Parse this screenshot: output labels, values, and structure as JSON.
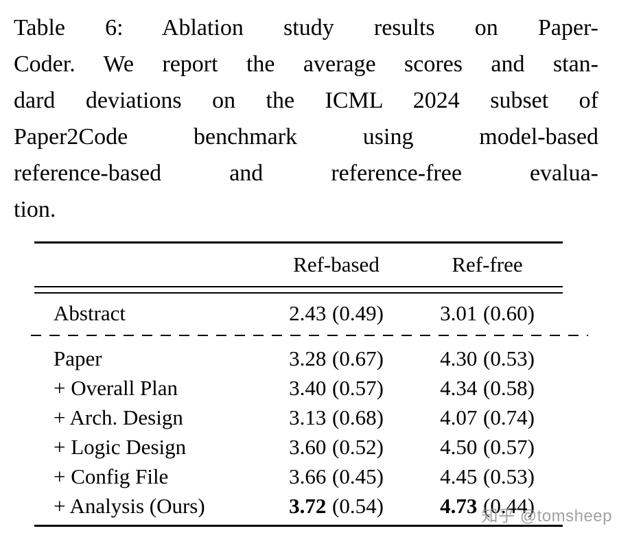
{
  "caption": {
    "lines": [
      "Table 6:  Ablation study results on Paper-",
      "Coder. We report the average scores and stan-",
      "dard deviations on the ICML 2024 subset of",
      "Paper2Code benchmark using model-based",
      "reference-based and reference-free evalua-",
      "tion."
    ]
  },
  "table": {
    "col_headers": [
      "Ref-based",
      "Ref-free"
    ],
    "rows": [
      {
        "label": "Abstract",
        "cells": [
          {
            "mean": "2.43",
            "std": "(0.49)"
          },
          {
            "mean": "3.01",
            "std": "(0.60)"
          }
        ]
      },
      {
        "label": "Paper",
        "cells": [
          {
            "mean": "3.28",
            "std": "(0.67)"
          },
          {
            "mean": "4.30",
            "std": "(0.53)"
          }
        ]
      },
      {
        "label": "+ Overall Plan",
        "cells": [
          {
            "mean": "3.40",
            "std": "(0.57)"
          },
          {
            "mean": "4.34",
            "std": "(0.58)"
          }
        ]
      },
      {
        "label": "+ Arch. Design",
        "cells": [
          {
            "mean": "3.13",
            "std": "(0.68)"
          },
          {
            "mean": "4.07",
            "std": "(0.74)"
          }
        ]
      },
      {
        "label": "+ Logic Design",
        "cells": [
          {
            "mean": "3.60",
            "std": "(0.52)"
          },
          {
            "mean": "4.50",
            "std": "(0.57)"
          }
        ]
      },
      {
        "label": "+ Config File",
        "cells": [
          {
            "mean": "3.66",
            "std": "(0.45)"
          },
          {
            "mean": "4.45",
            "std": "(0.53)"
          }
        ]
      },
      {
        "label": "+ Analysis (Ours)",
        "cells": [
          {
            "mean": "3.72",
            "std": "(0.54)"
          },
          {
            "mean": "4.73",
            "std": "(0.44)"
          }
        ]
      }
    ]
  },
  "watermark": "知乎 @tomsheep"
}
